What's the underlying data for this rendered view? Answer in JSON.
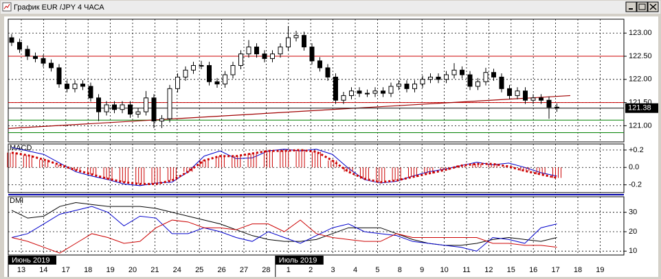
{
  "window": {
    "title": "График EUR /JPY  4 ЧАСА"
  },
  "chart_data": [
    {
      "type": "candlestick",
      "color": "#000000",
      "up_color": "#ffffff",
      "ohlc": [
        [
          122.9,
          122.98,
          122.72,
          122.8
        ],
        [
          122.8,
          122.88,
          122.57,
          122.65
        ],
        [
          122.65,
          122.73,
          122.42,
          122.5
        ],
        [
          122.5,
          122.58,
          122.37,
          122.45
        ],
        [
          122.45,
          122.53,
          122.27,
          122.35
        ],
        [
          122.35,
          122.43,
          122.17,
          122.25
        ],
        [
          122.25,
          122.33,
          121.82,
          121.9
        ],
        [
          121.9,
          121.98,
          121.72,
          121.8
        ],
        [
          121.8,
          121.98,
          121.72,
          121.9
        ],
        [
          121.9,
          121.98,
          121.77,
          121.85
        ],
        [
          121.85,
          121.93,
          121.52,
          121.6
        ],
        [
          121.6,
          121.68,
          121.1,
          121.3
        ],
        [
          121.3,
          121.53,
          121.22,
          121.45
        ],
        [
          121.45,
          121.53,
          121.27,
          121.35
        ],
        [
          121.35,
          121.53,
          121.27,
          121.45
        ],
        [
          121.45,
          121.53,
          121.17,
          121.25
        ],
        [
          121.25,
          121.38,
          121.17,
          121.3
        ],
        [
          121.3,
          121.75,
          121.22,
          121.6
        ],
        [
          121.6,
          121.68,
          120.95,
          121.1
        ],
        [
          121.1,
          121.23,
          120.95,
          121.15
        ],
        [
          121.15,
          121.88,
          121.07,
          121.8
        ],
        [
          121.8,
          122.13,
          121.72,
          122.05
        ],
        [
          122.05,
          122.28,
          121.97,
          122.2
        ],
        [
          122.2,
          122.38,
          122.12,
          122.3
        ],
        [
          122.3,
          122.4,
          122.22,
          122.3
        ],
        [
          122.3,
          122.38,
          121.87,
          121.95
        ],
        [
          121.95,
          122.03,
          121.82,
          121.9
        ],
        [
          121.9,
          122.18,
          121.82,
          122.1
        ],
        [
          122.1,
          122.38,
          122.02,
          122.3
        ],
        [
          122.3,
          122.63,
          122.22,
          122.55
        ],
        [
          122.55,
          122.85,
          122.47,
          122.7
        ],
        [
          122.7,
          122.78,
          122.47,
          122.55
        ],
        [
          122.55,
          122.63,
          122.37,
          122.45
        ],
        [
          122.45,
          122.63,
          122.37,
          122.55
        ],
        [
          122.55,
          122.78,
          122.47,
          122.7
        ],
        [
          122.7,
          123.15,
          122.62,
          122.9
        ],
        [
          122.9,
          123.05,
          122.82,
          122.95
        ],
        [
          122.95,
          123.03,
          122.62,
          122.7
        ],
        [
          122.7,
          122.78,
          122.32,
          122.4
        ],
        [
          122.4,
          122.48,
          122.17,
          122.25
        ],
        [
          122.25,
          122.33,
          121.97,
          122.05
        ],
        [
          122.05,
          122.13,
          121.47,
          121.55
        ],
        [
          121.55,
          121.73,
          121.47,
          121.65
        ],
        [
          121.65,
          121.83,
          121.57,
          121.75
        ],
        [
          121.75,
          121.83,
          121.62,
          121.7
        ],
        [
          121.7,
          121.78,
          121.62,
          121.7
        ],
        [
          121.7,
          121.83,
          121.62,
          121.75
        ],
        [
          121.75,
          121.83,
          121.62,
          121.7
        ],
        [
          121.7,
          121.93,
          121.62,
          121.85
        ],
        [
          121.85,
          121.98,
          121.77,
          121.9
        ],
        [
          121.9,
          121.98,
          121.72,
          121.8
        ],
        [
          121.8,
          121.98,
          121.72,
          121.9
        ],
        [
          121.9,
          122.08,
          121.82,
          122.0
        ],
        [
          122.0,
          122.13,
          121.92,
          122.05
        ],
        [
          122.05,
          122.13,
          121.92,
          122.0
        ],
        [
          122.0,
          122.18,
          121.92,
          122.1
        ],
        [
          122.1,
          122.35,
          122.02,
          122.2
        ],
        [
          122.2,
          122.28,
          122.02,
          122.1
        ],
        [
          122.1,
          122.18,
          121.77,
          121.85
        ],
        [
          121.85,
          122.03,
          121.77,
          121.95
        ],
        [
          121.95,
          122.25,
          121.87,
          122.15
        ],
        [
          122.15,
          122.23,
          121.97,
          122.05
        ],
        [
          122.05,
          122.13,
          121.72,
          121.8
        ],
        [
          121.8,
          121.88,
          121.57,
          121.65
        ],
        [
          121.65,
          121.83,
          121.57,
          121.75
        ],
        [
          121.75,
          121.83,
          121.47,
          121.55
        ],
        [
          121.55,
          121.68,
          121.47,
          121.6
        ],
        [
          121.6,
          121.68,
          121.47,
          121.55
        ],
        [
          121.55,
          121.63,
          121.15,
          121.4
        ],
        [
          121.4,
          121.48,
          121.3,
          121.38
        ]
      ],
      "ylim": [
        120.65,
        123.3
      ],
      "yticks": [
        {
          "value": 121,
          "label": "121.00"
        },
        {
          "value": 121.5,
          "label": "121.50"
        },
        {
          "value": 122,
          "label": "122.00"
        },
        {
          "value": 122.5,
          "label": "122.50"
        },
        {
          "value": 123,
          "label": "123.00"
        }
      ],
      "hlines": [
        {
          "value": 122.5,
          "color": "#cc0000"
        },
        {
          "value": 121.5,
          "color": "#cc0000"
        },
        {
          "value": 121.12,
          "color": "#008000"
        },
        {
          "value": 120.85,
          "color": "#008000"
        }
      ],
      "trendline": {
        "values": [
          120.94,
          121.65
        ],
        "color": "#a00000"
      },
      "last_price": 121.38
    },
    {
      "type": "macd",
      "title": "MACD",
      "ylim": [
        -0.29,
        0.27
      ],
      "yticks": [
        {
          "value": 0.2,
          "label": "+0.2"
        },
        {
          "value": 0,
          "label": "0.0"
        },
        -0.2
      ],
      "series": [
        {
          "color": "#0000cc",
          "values": [
            0.23,
            0.19,
            0.15,
            0.05,
            -0.05,
            -0.1,
            -0.14,
            -0.19,
            -0.21,
            -0.18,
            -0.17,
            -0.05,
            0.13,
            0.19,
            0.1,
            0.11,
            0.19,
            0.21,
            0.19,
            0.21,
            0.15,
            -0.01,
            -0.14,
            -0.18,
            -0.16,
            -0.1,
            -0.05,
            -0.02,
            0.02,
            0.06,
            0.03,
            0.05,
            0.0,
            -0.06,
            -0.1
          ]
        },
        {
          "color": "#cc0000",
          "dotted": true,
          "bars": true,
          "values": [
            0.17,
            0.14,
            0.09,
            0.03,
            -0.03,
            -0.08,
            -0.13,
            -0.17,
            -0.19,
            -0.19,
            -0.15,
            -0.05,
            0.08,
            0.13,
            0.13,
            0.16,
            0.19,
            0.19,
            0.2,
            0.18,
            0.08,
            -0.05,
            -0.13,
            -0.17,
            -0.15,
            -0.11,
            -0.07,
            -0.03,
            0.02,
            0.04,
            0.04,
            0.01,
            -0.04,
            -0.08,
            -0.12
          ]
        }
      ]
    },
    {
      "type": "line",
      "title": "DMI",
      "ylim": [
        8,
        38
      ],
      "yticks": [
        10,
        20,
        30
      ],
      "series": [
        {
          "color": "#000000",
          "values": [
            31,
            27,
            28,
            33,
            35,
            34,
            33,
            33,
            33,
            32,
            30,
            28,
            26,
            24,
            21,
            18,
            16,
            15,
            15,
            16,
            19,
            22,
            22,
            22,
            19,
            16,
            14,
            13,
            13,
            14,
            16,
            17,
            16,
            15,
            17
          ]
        },
        {
          "color": "#0000cc",
          "values": [
            17,
            19,
            24,
            29,
            31,
            33,
            30,
            23,
            28,
            27,
            19,
            19,
            22,
            20,
            17,
            15,
            20,
            17,
            14,
            18,
            22,
            24,
            20,
            19,
            18,
            15,
            14,
            13,
            12,
            10,
            17,
            16,
            14,
            22,
            24
          ]
        },
        {
          "color": "#cc0000",
          "values": [
            17,
            15,
            12,
            9,
            14,
            19,
            17,
            14,
            15,
            22,
            26,
            25,
            22,
            22,
            21,
            24,
            24,
            20,
            26,
            19,
            17,
            16,
            15,
            15,
            19,
            17,
            17,
            17,
            17,
            17,
            14,
            14,
            13,
            13,
            12
          ]
        }
      ]
    }
  ],
  "x_axis": {
    "labels": [
      "13",
      "14",
      "17",
      "18",
      "19",
      "20",
      "21",
      "24",
      "25",
      "26",
      "27",
      "28",
      "1",
      "2",
      "3",
      "4",
      "5",
      "8",
      "9",
      "10",
      "11",
      "12",
      "15",
      "16",
      "17",
      "18",
      "19"
    ],
    "period_labels": [
      {
        "label": "Июнь 2019",
        "at": 0
      },
      {
        "label": "Июль 2019",
        "at": 12
      }
    ]
  }
}
